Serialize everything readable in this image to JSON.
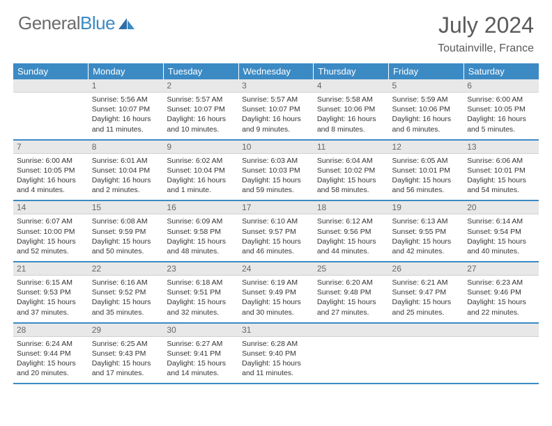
{
  "logo": {
    "word1": "General",
    "word2": "Blue"
  },
  "title": "July 2024",
  "subtitle": "Toutainville, France",
  "dow": [
    "Sunday",
    "Monday",
    "Tuesday",
    "Wednesday",
    "Thursday",
    "Friday",
    "Saturday"
  ],
  "colors": {
    "header_bg": "#3b8ac4",
    "header_fg": "#ffffff",
    "daynum_bg": "#e8e8e8",
    "row_border": "#3b8ac4",
    "text": "#333333",
    "title": "#5a5a5a"
  },
  "weeks": [
    [
      null,
      {
        "n": "1",
        "sr": "5:56 AM",
        "ss": "10:07 PM",
        "dl": "16 hours and 11 minutes."
      },
      {
        "n": "2",
        "sr": "5:57 AM",
        "ss": "10:07 PM",
        "dl": "16 hours and 10 minutes."
      },
      {
        "n": "3",
        "sr": "5:57 AM",
        "ss": "10:07 PM",
        "dl": "16 hours and 9 minutes."
      },
      {
        "n": "4",
        "sr": "5:58 AM",
        "ss": "10:06 PM",
        "dl": "16 hours and 8 minutes."
      },
      {
        "n": "5",
        "sr": "5:59 AM",
        "ss": "10:06 PM",
        "dl": "16 hours and 6 minutes."
      },
      {
        "n": "6",
        "sr": "6:00 AM",
        "ss": "10:05 PM",
        "dl": "16 hours and 5 minutes."
      }
    ],
    [
      {
        "n": "7",
        "sr": "6:00 AM",
        "ss": "10:05 PM",
        "dl": "16 hours and 4 minutes."
      },
      {
        "n": "8",
        "sr": "6:01 AM",
        "ss": "10:04 PM",
        "dl": "16 hours and 2 minutes."
      },
      {
        "n": "9",
        "sr": "6:02 AM",
        "ss": "10:04 PM",
        "dl": "16 hours and 1 minute."
      },
      {
        "n": "10",
        "sr": "6:03 AM",
        "ss": "10:03 PM",
        "dl": "15 hours and 59 minutes."
      },
      {
        "n": "11",
        "sr": "6:04 AM",
        "ss": "10:02 PM",
        "dl": "15 hours and 58 minutes."
      },
      {
        "n": "12",
        "sr": "6:05 AM",
        "ss": "10:01 PM",
        "dl": "15 hours and 56 minutes."
      },
      {
        "n": "13",
        "sr": "6:06 AM",
        "ss": "10:01 PM",
        "dl": "15 hours and 54 minutes."
      }
    ],
    [
      {
        "n": "14",
        "sr": "6:07 AM",
        "ss": "10:00 PM",
        "dl": "15 hours and 52 minutes."
      },
      {
        "n": "15",
        "sr": "6:08 AM",
        "ss": "9:59 PM",
        "dl": "15 hours and 50 minutes."
      },
      {
        "n": "16",
        "sr": "6:09 AM",
        "ss": "9:58 PM",
        "dl": "15 hours and 48 minutes."
      },
      {
        "n": "17",
        "sr": "6:10 AM",
        "ss": "9:57 PM",
        "dl": "15 hours and 46 minutes."
      },
      {
        "n": "18",
        "sr": "6:12 AM",
        "ss": "9:56 PM",
        "dl": "15 hours and 44 minutes."
      },
      {
        "n": "19",
        "sr": "6:13 AM",
        "ss": "9:55 PM",
        "dl": "15 hours and 42 minutes."
      },
      {
        "n": "20",
        "sr": "6:14 AM",
        "ss": "9:54 PM",
        "dl": "15 hours and 40 minutes."
      }
    ],
    [
      {
        "n": "21",
        "sr": "6:15 AM",
        "ss": "9:53 PM",
        "dl": "15 hours and 37 minutes."
      },
      {
        "n": "22",
        "sr": "6:16 AM",
        "ss": "9:52 PM",
        "dl": "15 hours and 35 minutes."
      },
      {
        "n": "23",
        "sr": "6:18 AM",
        "ss": "9:51 PM",
        "dl": "15 hours and 32 minutes."
      },
      {
        "n": "24",
        "sr": "6:19 AM",
        "ss": "9:49 PM",
        "dl": "15 hours and 30 minutes."
      },
      {
        "n": "25",
        "sr": "6:20 AM",
        "ss": "9:48 PM",
        "dl": "15 hours and 27 minutes."
      },
      {
        "n": "26",
        "sr": "6:21 AM",
        "ss": "9:47 PM",
        "dl": "15 hours and 25 minutes."
      },
      {
        "n": "27",
        "sr": "6:23 AM",
        "ss": "9:46 PM",
        "dl": "15 hours and 22 minutes."
      }
    ],
    [
      {
        "n": "28",
        "sr": "6:24 AM",
        "ss": "9:44 PM",
        "dl": "15 hours and 20 minutes."
      },
      {
        "n": "29",
        "sr": "6:25 AM",
        "ss": "9:43 PM",
        "dl": "15 hours and 17 minutes."
      },
      {
        "n": "30",
        "sr": "6:27 AM",
        "ss": "9:41 PM",
        "dl": "15 hours and 14 minutes."
      },
      {
        "n": "31",
        "sr": "6:28 AM",
        "ss": "9:40 PM",
        "dl": "15 hours and 11 minutes."
      },
      null,
      null,
      null
    ]
  ],
  "labels": {
    "sunrise": "Sunrise:",
    "sunset": "Sunset:",
    "daylight": "Daylight:"
  }
}
